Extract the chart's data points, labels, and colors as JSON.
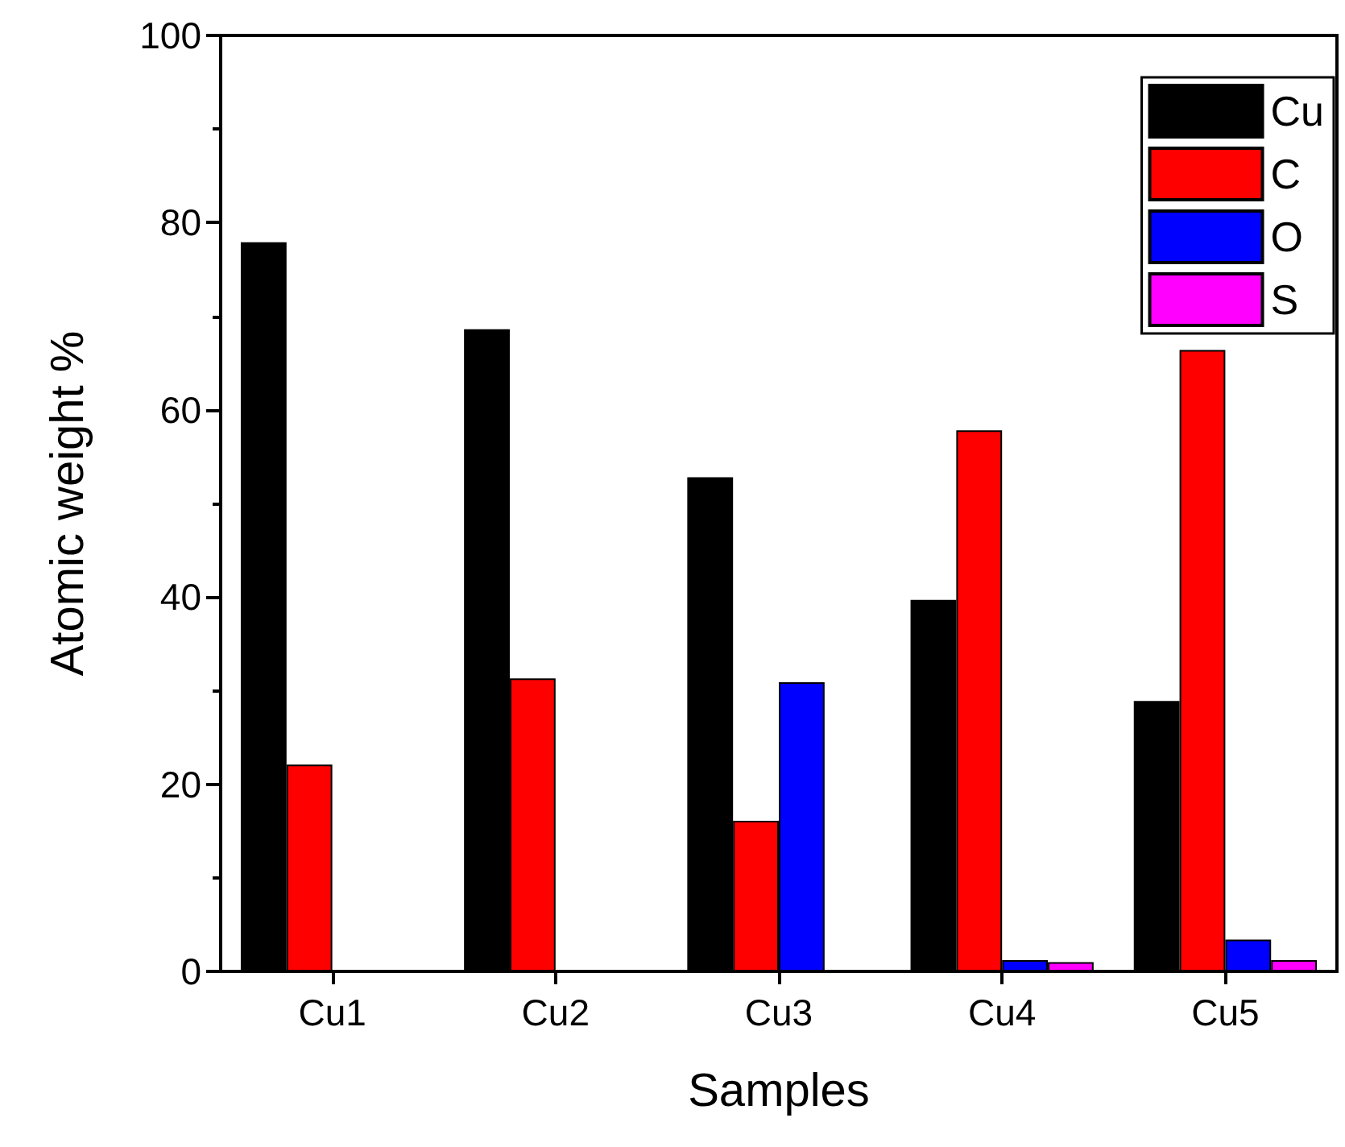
{
  "chart_data": {
    "type": "bar",
    "xlabel": "Samples",
    "ylabel": "Atomic weight %",
    "categories": [
      "Cu1",
      "Cu2",
      "Cu3",
      "Cu4",
      "Cu5"
    ],
    "series": [
      {
        "name": "Cu",
        "color": "#000000",
        "values": [
          77.9,
          68.6,
          52.8,
          39.7,
          28.9
        ]
      },
      {
        "name": "C",
        "color": "#ff0000",
        "values": [
          22.1,
          31.3,
          16.1,
          57.8,
          66.4
        ]
      },
      {
        "name": "O",
        "color": "#0000ff",
        "values": [
          null,
          null,
          30.9,
          1.2,
          3.4
        ]
      },
      {
        "name": "S",
        "color": "#ff00ff",
        "values": [
          null,
          null,
          null,
          1.0,
          1.2
        ]
      }
    ],
    "ylim": [
      0,
      100
    ],
    "yticks": [
      0,
      20,
      40,
      60,
      80,
      100
    ],
    "grid": false,
    "legend": "top right"
  }
}
